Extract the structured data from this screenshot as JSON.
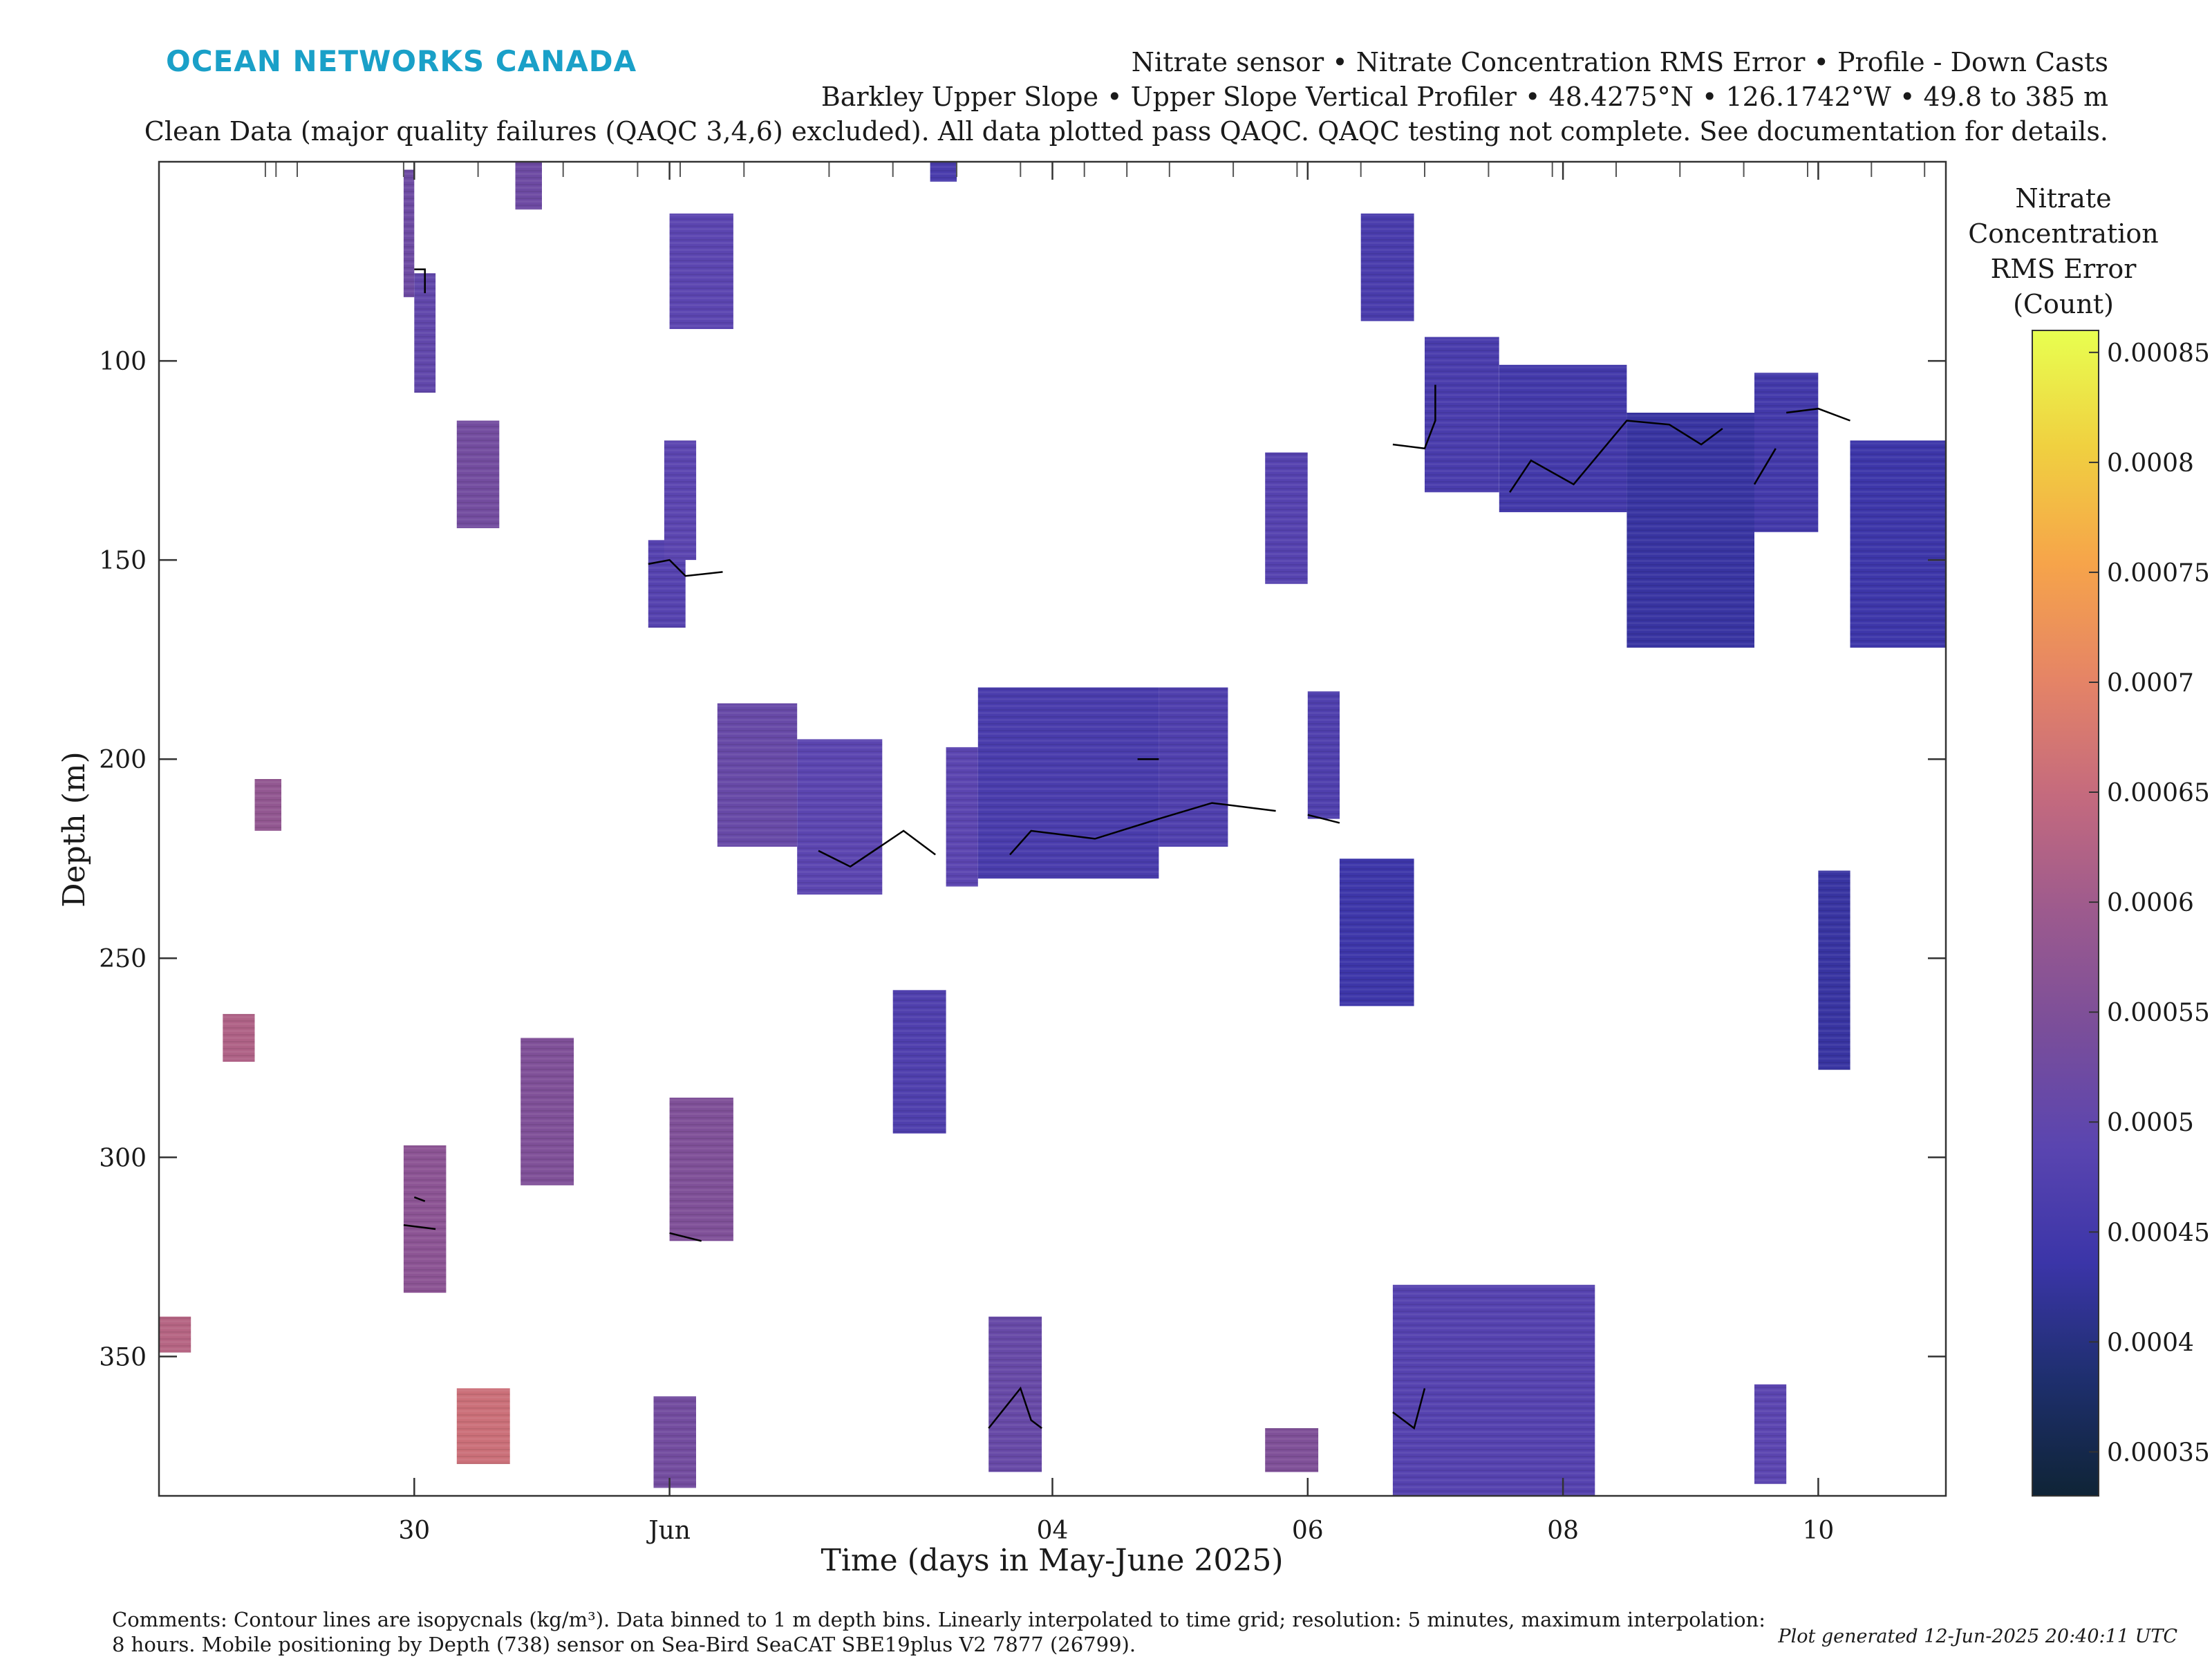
{
  "header": {
    "brand": "OCEAN NETWORKS CANADA",
    "line1": "Nitrate sensor • Nitrate Concentration RMS Error • Profile - Down Casts",
    "line2": "Barkley Upper Slope • Upper Slope Vertical Profiler • 48.4275°N • 126.1742°W • 49.8 to 385 m",
    "line3": "Clean Data (major quality failures (QAQC 3,4,6) excluded). All data plotted pass QAQC. QAQC testing not complete. See documentation for details."
  },
  "footer": {
    "comments_line1": "Comments: Contour lines are isopycnals (kg/m³). Data binned to 1 m depth bins. Linearly interpolated to time grid; resolution: 5 minutes, maximum interpolation:",
    "comments_line2": "8 hours. Mobile positioning by Depth (738) sensor on Sea-Bird SeaCAT SBE19plus V2 7877 (26799).",
    "generated": "Plot generated 12-Jun-2025 20:40:11 UTC"
  },
  "colors": {
    "colormap": [
      "#0f2436",
      "#1e2f6e",
      "#3b35a8",
      "#5a45b0",
      "#7a4e9a",
      "#9c5a8e",
      "#c46a7e",
      "#e58466",
      "#f6a44a",
      "#f0d040",
      "#e8ff50"
    ],
    "isopycnal_line": "#000000",
    "axis": "#333333"
  },
  "chart_data": {
    "type": "heatmap",
    "title": "",
    "xlabel": "Time (days in May-June 2025)",
    "ylabel": "Depth (m)",
    "x_range": [
      "2025-05-28",
      "2025-06-11"
    ],
    "y_range": [
      385,
      50
    ],
    "y_reversed": true,
    "x_ticks": [
      {
        "date": "2025-05-30",
        "label": "30"
      },
      {
        "date": "2025-06-01",
        "label": "Jun"
      },
      {
        "date": "2025-06-04",
        "label": "04"
      },
      {
        "date": "2025-06-06",
        "label": "06"
      },
      {
        "date": "2025-06-08",
        "label": "08"
      },
      {
        "date": "2025-06-10",
        "label": "10"
      }
    ],
    "y_ticks": [
      100,
      150,
      200,
      250,
      300,
      350
    ],
    "colorbar": {
      "label_lines": [
        "Nitrate",
        "Concentration",
        "RMS Error",
        "(Count)"
      ],
      "range": [
        0.00033,
        0.00086
      ],
      "ticks": [
        {
          "value": 0.00035,
          "label": "0.00035"
        },
        {
          "value": 0.0004,
          "label": "0.0004"
        },
        {
          "value": 0.00045,
          "label": "0.00045"
        },
        {
          "value": 0.0005,
          "label": "0.0005"
        },
        {
          "value": 0.00055,
          "label": "0.00055"
        },
        {
          "value": 0.0006,
          "label": "0.0006"
        },
        {
          "value": 0.00065,
          "label": "0.00065"
        },
        {
          "value": 0.0007,
          "label": "0.0007"
        },
        {
          "value": 0.00075,
          "label": "0.00075"
        },
        {
          "value": 0.0008,
          "label": "0.0008"
        },
        {
          "value": 0.00085,
          "label": "0.00085"
        }
      ]
    },
    "data_patches": [
      {
        "start": "2025-05-29 22:00",
        "end": "2025-05-30 00:00",
        "depth_top": 52,
        "depth_bottom": 84,
        "value": 0.00052
      },
      {
        "start": "2025-05-30 00:00",
        "end": "2025-05-30 04:00",
        "depth_top": 78,
        "depth_bottom": 108,
        "value": 0.0005
      },
      {
        "start": "2025-05-30 08:00",
        "end": "2025-05-30 16:00",
        "depth_top": 115,
        "depth_bottom": 142,
        "value": 0.00053
      },
      {
        "start": "2025-05-30 19:00",
        "end": "2025-05-31 00:00",
        "depth_top": 50,
        "depth_bottom": 62,
        "value": 0.00052
      },
      {
        "start": "2025-05-31 20:00",
        "end": "2025-06-01 03:00",
        "depth_top": 145,
        "depth_bottom": 167,
        "value": 0.00048
      },
      {
        "start": "2025-05-31 23:00",
        "end": "2025-06-01 05:00",
        "depth_top": 120,
        "depth_bottom": 150,
        "value": 0.00049
      },
      {
        "start": "2025-06-01 00:00",
        "end": "2025-06-01 12:00",
        "depth_top": 63,
        "depth_bottom": 92,
        "value": 0.00049
      },
      {
        "start": "2025-06-01 09:00",
        "end": "2025-06-02 00:00",
        "depth_top": 186,
        "depth_bottom": 222,
        "value": 0.00051
      },
      {
        "start": "2025-06-02 00:00",
        "end": "2025-06-02 16:00",
        "depth_top": 195,
        "depth_bottom": 234,
        "value": 0.00049
      },
      {
        "start": "2025-06-03 01:00",
        "end": "2025-06-03 06:00",
        "depth_top": 50,
        "depth_bottom": 55,
        "value": 0.00046
      },
      {
        "start": "2025-06-03 04:00",
        "end": "2025-06-03 10:00",
        "depth_top": 197,
        "depth_bottom": 232,
        "value": 0.00049
      },
      {
        "start": "2025-06-03 10:00",
        "end": "2025-06-04 20:00",
        "depth_top": 182,
        "depth_bottom": 230,
        "value": 0.00046
      },
      {
        "start": "2025-06-04 20:00",
        "end": "2025-06-05 09:00",
        "depth_top": 182,
        "depth_bottom": 222,
        "value": 0.00047
      },
      {
        "start": "2025-06-05 16:00",
        "end": "2025-06-06 00:00",
        "depth_top": 123,
        "depth_bottom": 156,
        "value": 0.00048
      },
      {
        "start": "2025-06-06 00:00",
        "end": "2025-06-06 06:00",
        "depth_top": 183,
        "depth_bottom": 215,
        "value": 0.00047
      },
      {
        "start": "2025-06-06 06:00",
        "end": "2025-06-06 20:00",
        "depth_top": 225,
        "depth_bottom": 262,
        "value": 0.00044
      },
      {
        "start": "2025-06-06 10:00",
        "end": "2025-06-06 20:00",
        "depth_top": 63,
        "depth_bottom": 90,
        "value": 0.00046
      },
      {
        "start": "2025-06-06 22:00",
        "end": "2025-06-07 12:00",
        "depth_top": 94,
        "depth_bottom": 133,
        "value": 0.00046
      },
      {
        "start": "2025-06-07 12:00",
        "end": "2025-06-08 12:00",
        "depth_top": 101,
        "depth_bottom": 138,
        "value": 0.00045
      },
      {
        "start": "2025-06-08 12:00",
        "end": "2025-06-09 12:00",
        "depth_top": 113,
        "depth_bottom": 172,
        "value": 0.00043
      },
      {
        "start": "2025-06-09 12:00",
        "end": "2025-06-10 00:00",
        "depth_top": 103,
        "depth_bottom": 143,
        "value": 0.00045
      },
      {
        "start": "2025-06-10 00:00",
        "end": "2025-06-10 06:00",
        "depth_top": 228,
        "depth_bottom": 278,
        "value": 0.00043
      },
      {
        "start": "2025-06-10 06:00",
        "end": "2025-06-11 00:00",
        "depth_top": 120,
        "depth_bottom": 172,
        "value": 0.00044
      },
      {
        "start": "2025-05-28 18:00",
        "end": "2025-05-28 23:00",
        "depth_top": 205,
        "depth_bottom": 218,
        "value": 0.00058
      },
      {
        "start": "2025-05-28 12:00",
        "end": "2025-05-28 18:00",
        "depth_top": 264,
        "depth_bottom": 276,
        "value": 0.00062
      },
      {
        "start": "2025-05-28 00:00",
        "end": "2025-05-28 06:00",
        "depth_top": 340,
        "depth_bottom": 349,
        "value": 0.00063
      },
      {
        "start": "2025-05-29 22:00",
        "end": "2025-05-30 06:00",
        "depth_top": 297,
        "depth_bottom": 334,
        "value": 0.00057
      },
      {
        "start": "2025-05-30 20:00",
        "end": "2025-05-31 06:00",
        "depth_top": 270,
        "depth_bottom": 307,
        "value": 0.00055
      },
      {
        "start": "2025-05-30 08:00",
        "end": "2025-05-30 18:00",
        "depth_top": 358,
        "depth_bottom": 377,
        "value": 0.00066
      },
      {
        "start": "2025-06-01 00:00",
        "end": "2025-06-01 12:00",
        "depth_top": 285,
        "depth_bottom": 321,
        "value": 0.00055
      },
      {
        "start": "2025-05-31 21:00",
        "end": "2025-06-01 05:00",
        "depth_top": 360,
        "depth_bottom": 383,
        "value": 0.00053
      },
      {
        "start": "2025-06-02 18:00",
        "end": "2025-06-03 04:00",
        "depth_top": 258,
        "depth_bottom": 294,
        "value": 0.00047
      },
      {
        "start": "2025-06-03 12:00",
        "end": "2025-06-03 22:00",
        "depth_top": 340,
        "depth_bottom": 379,
        "value": 0.00051
      },
      {
        "start": "2025-06-05 16:00",
        "end": "2025-06-06 02:00",
        "depth_top": 368,
        "depth_bottom": 379,
        "value": 0.00055
      },
      {
        "start": "2025-06-06 16:00",
        "end": "2025-06-08 06:00",
        "depth_top": 332,
        "depth_bottom": 385,
        "value": 0.00048
      },
      {
        "start": "2025-06-09 12:00",
        "end": "2025-06-09 18:00",
        "depth_top": 357,
        "depth_bottom": 382,
        "value": 0.00049
      }
    ],
    "isopycnal_segments": [
      [
        [
          "2025-05-30 00:00",
          77
        ],
        [
          "2025-05-30 02:00",
          77
        ],
        [
          "2025-05-30 02:00",
          83
        ]
      ],
      [
        [
          "2025-05-31 20:00",
          151
        ],
        [
          "2025-06-01 00:00",
          150
        ],
        [
          "2025-06-01 03:00",
          154
        ],
        [
          "2025-06-01 10:00",
          153
        ]
      ],
      [
        [
          "2025-05-30 00:00",
          310
        ],
        [
          "2025-05-30 02:00",
          311
        ]
      ],
      [
        [
          "2025-05-29 22:00",
          317
        ],
        [
          "2025-05-30 04:00",
          318
        ]
      ],
      [
        [
          "2025-06-01 00:00",
          319
        ],
        [
          "2025-06-01 06:00",
          321
        ]
      ],
      [
        [
          "2025-06-02 04:00",
          223
        ],
        [
          "2025-06-02 10:00",
          227
        ],
        [
          "2025-06-02 20:00",
          218
        ],
        [
          "2025-06-03 02:00",
          224
        ]
      ],
      [
        [
          "2025-06-03 12:00",
          368
        ],
        [
          "2025-06-03 18:00",
          358
        ],
        [
          "2025-06-03 20:00",
          366
        ],
        [
          "2025-06-03 22:00",
          368
        ]
      ],
      [
        [
          "2025-06-03 16:00",
          224
        ],
        [
          "2025-06-03 20:00",
          218
        ],
        [
          "2025-06-04 08:00",
          220
        ],
        [
          "2025-06-04 20:00",
          215
        ],
        [
          "2025-06-05 06:00",
          211
        ],
        [
          "2025-06-05 18:00",
          213
        ]
      ],
      [
        [
          "2025-06-04 16:00",
          200
        ],
        [
          "2025-06-04 20:00",
          200
        ]
      ],
      [
        [
          "2025-06-06 00:00",
          214
        ],
        [
          "2025-06-06 06:00",
          216
        ]
      ],
      [
        [
          "2025-06-06 16:00",
          121
        ],
        [
          "2025-06-06 22:00",
          122
        ],
        [
          "2025-06-07 00:00",
          115
        ],
        [
          "2025-06-07 00:00",
          106
        ]
      ],
      [
        [
          "2025-06-06 16:00",
          364
        ],
        [
          "2025-06-06 20:00",
          368
        ],
        [
          "2025-06-06 22:00",
          358
        ]
      ],
      [
        [
          "2025-06-07 14:00",
          133
        ],
        [
          "2025-06-07 18:00",
          125
        ],
        [
          "2025-06-08 02:00",
          131
        ],
        [
          "2025-06-08 12:00",
          115
        ],
        [
          "2025-06-08 20:00",
          116
        ],
        [
          "2025-06-09 02:00",
          121
        ],
        [
          "2025-06-09 06:00",
          117
        ]
      ],
      [
        [
          "2025-06-09 12:00",
          131
        ],
        [
          "2025-06-09 16:00",
          122
        ]
      ],
      [
        [
          "2025-06-09 18:00",
          113
        ],
        [
          "2025-06-10 00:00",
          112
        ],
        [
          "2025-06-10 06:00",
          115
        ]
      ]
    ],
    "top_marker_dates": [
      "2025-05-28 20:00",
      "2025-05-28 22:00",
      "2025-05-29 02:00",
      "2025-05-29 22:00",
      "2025-05-30 12:00",
      "2025-05-31 04:00",
      "2025-05-31 18:00",
      "2025-06-01 02:00",
      "2025-06-01 14:00",
      "2025-06-02 06:00",
      "2025-06-02 18:00",
      "2025-06-03 06:00",
      "2025-06-03 18:00",
      "2025-06-04 06:00",
      "2025-06-04 14:00",
      "2025-06-04 22:00",
      "2025-06-05 10:00",
      "2025-06-05 22:00",
      "2025-06-06 10:00",
      "2025-06-06 22:00",
      "2025-06-07 10:00",
      "2025-06-07 22:00",
      "2025-06-08 10:00",
      "2025-06-08 22:00",
      "2025-06-09 10:00",
      "2025-06-09 22:00",
      "2025-06-10 10:00",
      "2025-06-10 20:00"
    ]
  }
}
